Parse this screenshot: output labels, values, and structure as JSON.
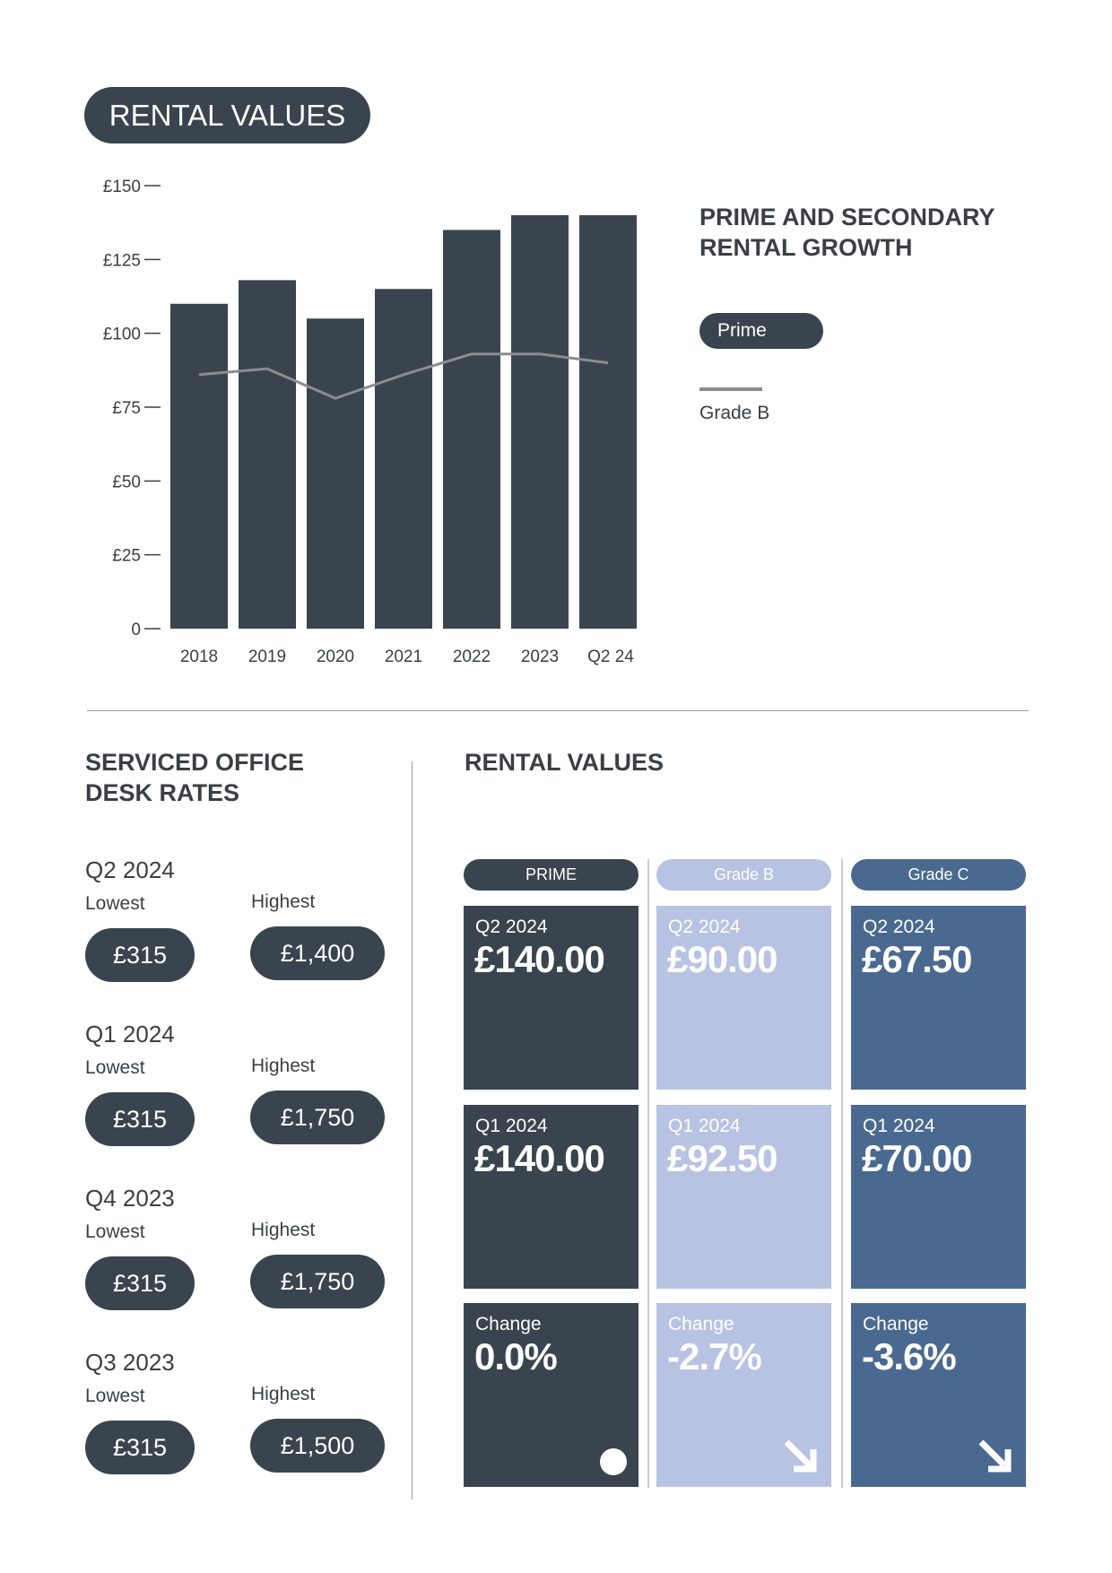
{
  "header": {
    "title": "RENTAL VALUES"
  },
  "chart_data": {
    "type": "bar",
    "title": "PRIME AND SECONDARY RENTAL GROWTH",
    "categories": [
      "2018",
      "2019",
      "2020",
      "2021",
      "2022",
      "2023",
      "Q2 24"
    ],
    "series": [
      {
        "name": "Prime",
        "type": "bar",
        "color": "#39444e",
        "values": [
          110,
          118,
          105,
          115,
          135,
          140,
          140
        ]
      },
      {
        "name": "Grade B",
        "type": "line",
        "color": "#8a8d90",
        "values": [
          86,
          88,
          78,
          86,
          93,
          93,
          90
        ]
      }
    ],
    "ylim": [
      0,
      150
    ],
    "yticks": [
      0,
      {
        "value": 25,
        "label": "£25"
      },
      {
        "value": 50,
        "label": "£50"
      },
      {
        "value": 75,
        "label": "£75"
      },
      {
        "value": 100,
        "label": "£100"
      },
      {
        "value": 125,
        "label": "£125"
      },
      {
        "value": 150,
        "label": "£150"
      }
    ]
  },
  "desk_rates": {
    "title": "SERVICED OFFICE DESK RATES",
    "quarters": [
      {
        "period": "Q2 2024",
        "lowest_label": "Lowest",
        "lowest": "£315",
        "highest_label": "Highest",
        "highest": "£1,400"
      },
      {
        "period": "Q1 2024",
        "lowest_label": "Lowest",
        "lowest": "£315",
        "highest_label": "Highest",
        "highest": "£1,750"
      },
      {
        "period": "Q4 2023",
        "lowest_label": "Lowest",
        "lowest": "£315",
        "highest_label": "Highest",
        "highest": "£1,750"
      },
      {
        "period": "Q3 2023",
        "lowest_label": "Lowest",
        "lowest": "£315",
        "highest_label": "Highest",
        "highest": "£1,500"
      }
    ]
  },
  "rental_table": {
    "title": "RENTAL VALUES",
    "columns": [
      {
        "header": "PRIME",
        "color": "#39444e",
        "cells": [
          {
            "label": "Q2 2024",
            "value": "£140.00"
          },
          {
            "label": "Q1 2024",
            "value": "£140.00"
          },
          {
            "label": "Change",
            "value": "0.0%"
          }
        ]
      },
      {
        "header": "Grade B",
        "color": "#b8c3e3",
        "cells": [
          {
            "label": "Q2 2024",
            "value": "£90.00"
          },
          {
            "label": "Q1 2024",
            "value": "£92.50"
          },
          {
            "label": "Change",
            "value": "-2.7%"
          }
        ]
      },
      {
        "header": "Grade C",
        "color": "#4a6990",
        "cells": [
          {
            "label": "Q2 2024",
            "value": "£67.50"
          },
          {
            "label": "Q1 2024",
            "value": "£70.00"
          },
          {
            "label": "Change",
            "value": "-3.6%"
          }
        ]
      }
    ]
  }
}
